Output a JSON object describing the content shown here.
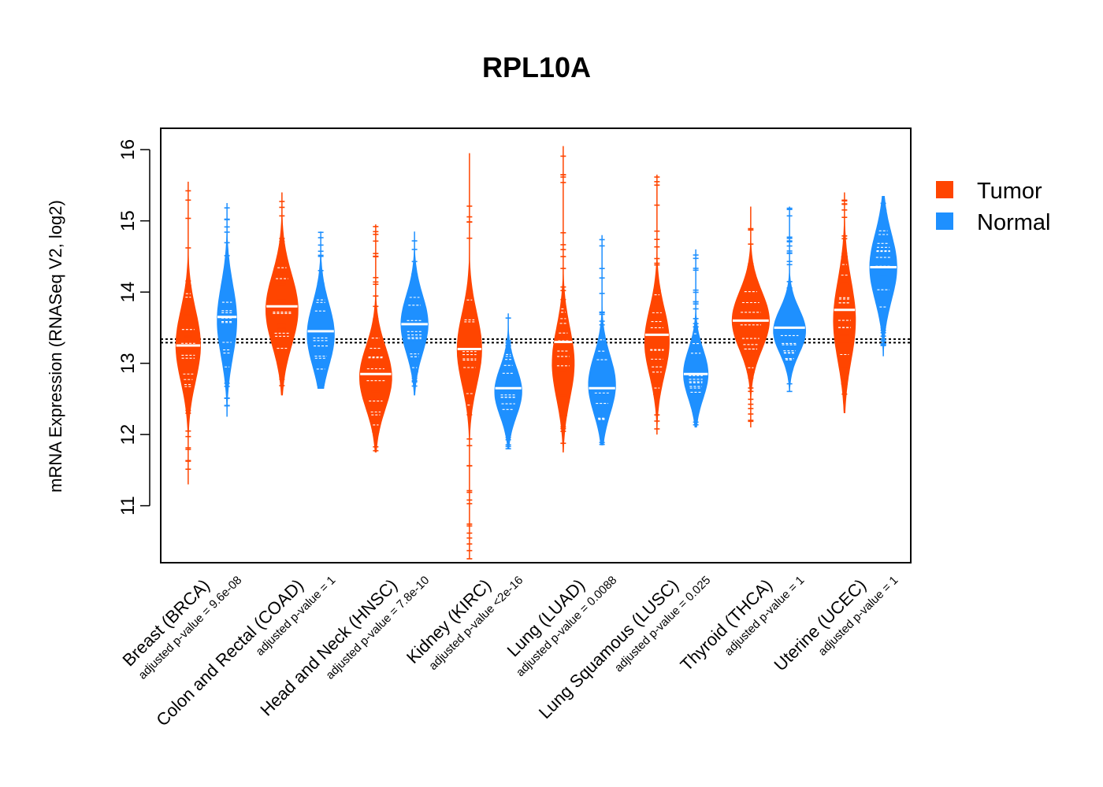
{
  "chart_data": {
    "type": "violin",
    "title": "RPL10A",
    "ylabel": "mRNA Expression (RNASeq V2, log2)",
    "xlabel": "",
    "ylim": [
      10.2,
      16.3
    ],
    "yticks": [
      11,
      12,
      13,
      14,
      15,
      16
    ],
    "reference_lines": [
      13.29,
      13.34
    ],
    "legend": {
      "position": "right",
      "entries": [
        "Tumor",
        "Normal"
      ]
    },
    "colors": {
      "Tumor": "#FF4500",
      "Normal": "#1E90FF"
    },
    "categories": [
      "Breast (BRCA)",
      "Colon and Rectal (COAD)",
      "Head and Neck (HNSC)",
      "Kidney (KIRC)",
      "Lung (LUAD)",
      "Lung Squamous (LUSC)",
      "Thyroid (THCA)",
      "Uterine (UCEC)"
    ],
    "pvalue_labels": [
      "adjusted p-value = 9.6e-08",
      "adjusted p-value = 1",
      "adjusted p-value = 7.8e-10",
      "adjusted p-value <2e-16",
      "adjusted p-value = 0.0088",
      "adjusted p-value = 0.025",
      "adjusted p-value = 1",
      "adjusted p-value = 1"
    ],
    "series": [
      {
        "name": "Tumor",
        "groups": [
          {
            "min": 11.3,
            "max": 15.55,
            "median": 13.25,
            "body_low": 12.4,
            "body_high": 14.0,
            "mode": 13.25,
            "width": 0.1
          },
          {
            "min": 12.55,
            "max": 15.4,
            "median": 13.8,
            "body_low": 13.0,
            "body_high": 14.6,
            "mode": 13.75,
            "width": 0.13
          },
          {
            "min": 11.75,
            "max": 14.95,
            "median": 12.85,
            "body_low": 12.1,
            "body_high": 13.5,
            "mode": 12.8,
            "width": 0.13
          },
          {
            "min": 10.25,
            "max": 15.95,
            "median": 13.2,
            "body_low": 12.4,
            "body_high": 14.0,
            "mode": 13.2,
            "width": 0.1
          },
          {
            "min": 11.75,
            "max": 16.05,
            "median": 13.3,
            "body_low": 12.3,
            "body_high": 13.9,
            "mode": 13.0,
            "width": 0.09
          },
          {
            "min": 12.0,
            "max": 15.65,
            "median": 13.4,
            "body_low": 12.6,
            "body_high": 14.1,
            "mode": 13.3,
            "width": 0.1
          },
          {
            "min": 12.1,
            "max": 15.2,
            "median": 13.6,
            "body_low": 12.9,
            "body_high": 14.2,
            "mode": 13.6,
            "width": 0.15
          },
          {
            "min": 12.3,
            "max": 15.4,
            "median": 13.75,
            "body_low": 12.9,
            "body_high": 14.7,
            "mode": 13.6,
            "width": 0.09
          }
        ]
      },
      {
        "name": "Normal",
        "groups": [
          {
            "min": 12.25,
            "max": 15.25,
            "median": 13.65,
            "body_low": 12.8,
            "body_high": 14.4,
            "mode": 13.6,
            "width": 0.08
          },
          {
            "min": 12.65,
            "max": 14.85,
            "median": 13.45,
            "body_low": 12.9,
            "body_high": 14.3,
            "mode": 13.4,
            "width": 0.11
          },
          {
            "min": 12.55,
            "max": 14.85,
            "median": 13.55,
            "body_low": 12.8,
            "body_high": 14.1,
            "mode": 13.55,
            "width": 0.11
          },
          {
            "min": 11.8,
            "max": 13.7,
            "median": 12.65,
            "body_low": 12.1,
            "body_high": 13.2,
            "mode": 12.6,
            "width": 0.11
          },
          {
            "min": 11.85,
            "max": 14.8,
            "median": 12.65,
            "body_low": 12.2,
            "body_high": 13.5,
            "mode": 12.7,
            "width": 0.11
          },
          {
            "min": 12.1,
            "max": 14.6,
            "median": 12.85,
            "body_low": 12.4,
            "body_high": 13.5,
            "mode": 12.85,
            "width": 0.1
          },
          {
            "min": 12.6,
            "max": 15.2,
            "median": 13.5,
            "body_low": 12.9,
            "body_high": 13.9,
            "mode": 13.45,
            "width": 0.13
          },
          {
            "min": 13.1,
            "max": 15.35,
            "median": 14.35,
            "body_low": 13.5,
            "body_high": 15.0,
            "mode": 14.35,
            "width": 0.11
          }
        ]
      }
    ]
  }
}
